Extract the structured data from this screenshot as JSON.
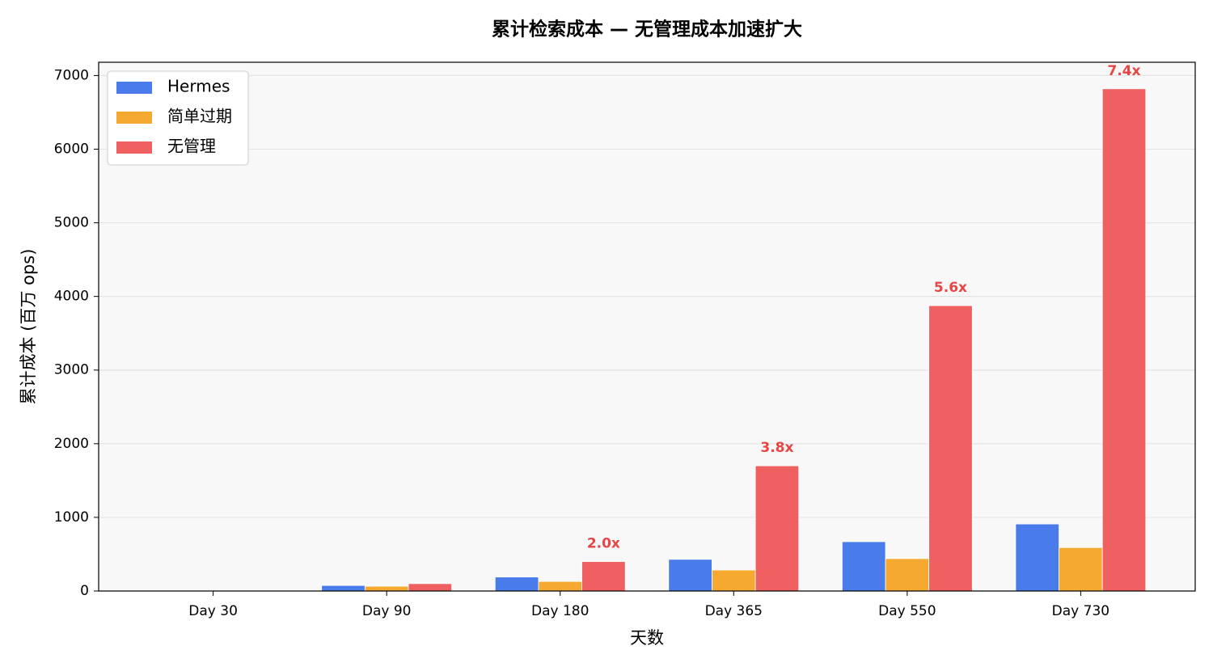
{
  "chart_data": {
    "type": "bar",
    "title": "累计检索成本 — 无管理成本加速扩大",
    "x_label": "天数",
    "y_label": "累计成本 (百万 ops)",
    "categories": [
      "Day 30",
      "Day 90",
      "Day 180",
      "Day 365",
      "Day 550",
      "Day 730"
    ],
    "series": [
      {
        "name": "Hermes",
        "color": "#4a7bea",
        "values": [
          5,
          75,
          190,
          430,
          670,
          910
        ]
      },
      {
        "name": "简单过期",
        "color": "#f5a931",
        "values": [
          3,
          65,
          130,
          285,
          440,
          590
        ]
      },
      {
        "name": "无管理",
        "color": "#ef6060",
        "values": [
          10,
          100,
          400,
          1700,
          3875,
          6820
        ]
      }
    ],
    "annotations": [
      {
        "category": 2,
        "series": 2,
        "text": "2.0x"
      },
      {
        "category": 3,
        "series": 2,
        "text": "3.8x"
      },
      {
        "category": 4,
        "series": 2,
        "text": "5.6x"
      },
      {
        "category": 5,
        "series": 2,
        "text": "7.4x"
      }
    ],
    "annotation_color": "#e84545",
    "ylim": [
      0,
      7180
    ],
    "yticks": [
      0,
      1000,
      2000,
      3000,
      4000,
      5000,
      6000,
      7000
    ],
    "grid": true,
    "legend": "upper-left"
  }
}
